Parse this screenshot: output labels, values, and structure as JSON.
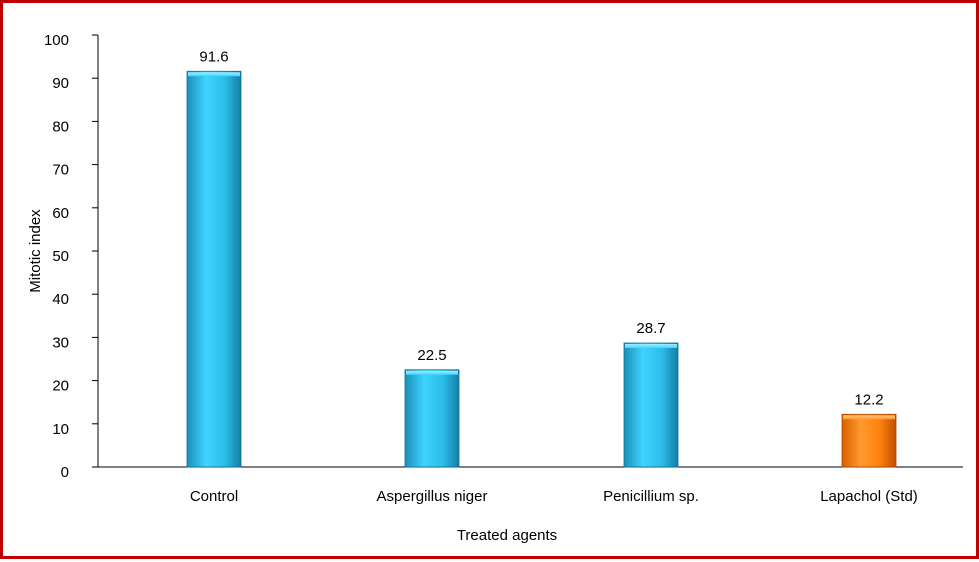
{
  "chart_data": {
    "type": "bar",
    "title": "",
    "xlabel": "Treated agents",
    "ylabel": "Mitotic index",
    "categories": [
      "Control",
      "Aspergillus niger",
      "Penicillium sp.",
      "Lapachol (Std)"
    ],
    "values": [
      91.6,
      22.5,
      28.7,
      12.2
    ],
    "value_labels": [
      "91.6",
      "22.5",
      "28.7",
      "12.2"
    ],
    "bar_colors": [
      "#2ec4f2",
      "#2ec4f2",
      "#2ec4f2",
      "#ff7f0e"
    ],
    "ylim": [
      0,
      100
    ],
    "yticks": [
      0,
      10,
      20,
      30,
      40,
      50,
      60,
      70,
      80,
      90,
      100
    ],
    "ytick_labels": [
      "0",
      "10",
      "20",
      "30",
      "40",
      "50",
      "60",
      "70",
      "80",
      "90",
      "100"
    ],
    "grid": false,
    "legend": "none",
    "border_color": "#c00000"
  }
}
